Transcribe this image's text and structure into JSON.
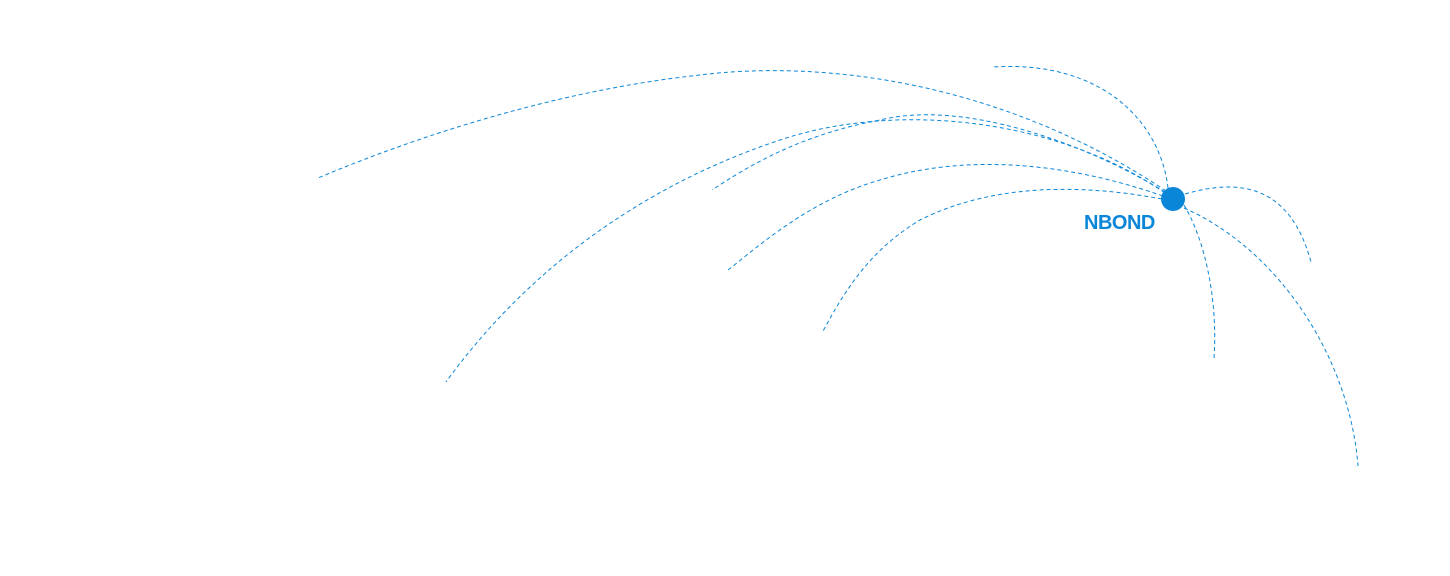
{
  "hub": {
    "label": "NBOND",
    "color": "#0a86d8"
  },
  "connections": 9
}
